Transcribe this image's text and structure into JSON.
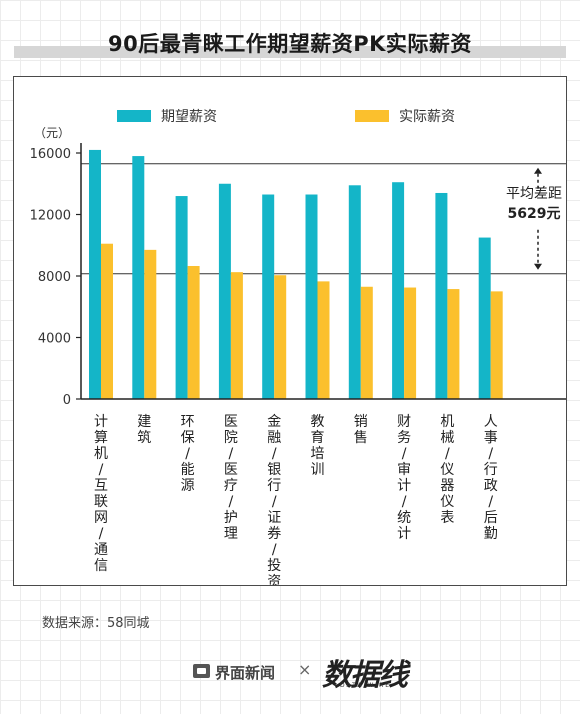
{
  "title": "90后最青睐工作期望薪资PK实际薪资",
  "source": "数据来源：58同城",
  "footer": {
    "publisher": "界面新闻",
    "separator": "×",
    "partner_logo": "数据线",
    "partner_sub": "DATA WIRE"
  },
  "colors": {
    "expected": "#14b5c8",
    "actual": "#fbc02d",
    "axis": "#222222"
  },
  "chart_data": {
    "type": "bar",
    "unit_label": "（元）",
    "categories": [
      "计算机/互联网/通信",
      "建筑",
      "环保/能源",
      "医院/医疗/护理",
      "金融/银行/证券/投资",
      "教育培训",
      "销售",
      "财务/审计/统计",
      "机械/仪器仪表",
      "人事/行政/后勤"
    ],
    "series": [
      {
        "name": "期望薪资",
        "values": [
          16200,
          15800,
          13200,
          14000,
          13300,
          13300,
          13900,
          14100,
          13400,
          10500
        ]
      },
      {
        "name": "实际薪资",
        "values": [
          10100,
          9700,
          8650,
          8250,
          8050,
          7650,
          7300,
          7250,
          7150,
          7000
        ]
      }
    ],
    "ylim": [
      0,
      16000
    ],
    "yticks": [
      0,
      4000,
      8000,
      12000,
      16000
    ],
    "ytick_labels": [
      "0",
      "4000",
      "8000",
      "12000",
      "16000"
    ],
    "reference_lines": [
      15300,
      8150
    ],
    "annotation": {
      "line1": "平均差距",
      "line2": "5629元"
    },
    "legend_position": "top"
  }
}
